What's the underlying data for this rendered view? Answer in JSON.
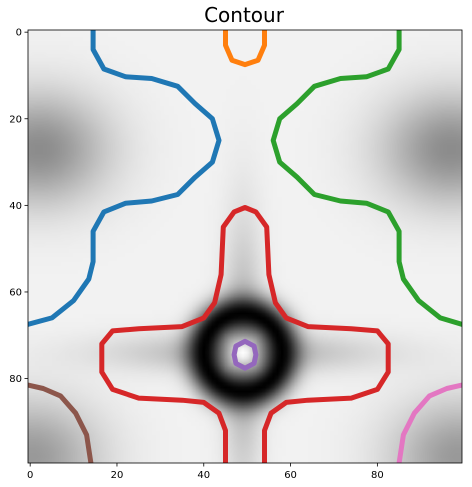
{
  "chart_data": {
    "type": "heatmap",
    "title": "Contour",
    "xlabel": "",
    "ylabel": "",
    "xlim": [
      -0.5,
      99.5
    ],
    "ylim": [
      99.5,
      -0.5
    ],
    "x_ticks": [
      0,
      20,
      40,
      60,
      80
    ],
    "y_ticks": [
      0,
      20,
      40,
      60,
      80
    ],
    "grid": false,
    "colormap": "gray",
    "image_features": {
      "light_background_level": 0.95,
      "dark_ring": {
        "center": [
          49,
          74
        ],
        "radius": 9,
        "level": 0.0
      },
      "bright_center": {
        "center": [
          49,
          74
        ],
        "level": 1.0
      },
      "gray_lobes": [
        {
          "center": [
            2,
            27
          ],
          "level": 0.55
        },
        {
          "center": [
            97,
            27
          ],
          "level": 0.55
        },
        {
          "center": [
            0,
            98
          ],
          "level": 0.6
        },
        {
          "center": [
            99,
            98
          ],
          "level": 0.6
        }
      ]
    },
    "series": [
      {
        "color": "#1f77b4",
        "segments": [
          [
            [
              14.5,
              -0.5
            ],
            [
              14.5,
              4
            ],
            [
              17,
              8.5
            ],
            [
              22,
              10.3
            ],
            [
              28,
              10.7
            ],
            [
              34,
              12.5
            ],
            [
              38,
              16.5
            ],
            [
              42,
              20
            ],
            [
              43.5,
              25
            ],
            [
              42,
              30
            ],
            [
              38,
              33.5
            ],
            [
              34,
              37.5
            ],
            [
              28,
              39
            ],
            [
              22,
              39.5
            ],
            [
              17,
              41.5
            ],
            [
              14.5,
              46
            ],
            [
              14.5,
              53
            ],
            [
              13.5,
              57
            ],
            [
              10,
              62
            ],
            [
              5,
              66
            ],
            [
              -0.5,
              67.5
            ]
          ]
        ]
      },
      {
        "color": "#ff7f0e",
        "segments": [
          [
            [
              45,
              -0.5
            ],
            [
              45,
              3
            ],
            [
              46.5,
              6.5
            ],
            [
              49.5,
              7.5
            ],
            [
              52.5,
              6.5
            ],
            [
              54,
              3
            ],
            [
              54,
              -0.5
            ]
          ]
        ]
      },
      {
        "color": "#2ca02c",
        "segments": [
          [
            [
              85,
              -0.5
            ],
            [
              85,
              4
            ],
            [
              82.5,
              8.5
            ],
            [
              77.5,
              10.3
            ],
            [
              71.5,
              10.7
            ],
            [
              65.5,
              12.5
            ],
            [
              61.5,
              16.5
            ],
            [
              57.5,
              20
            ],
            [
              56,
              25
            ],
            [
              57.5,
              30
            ],
            [
              61.5,
              33.5
            ],
            [
              65.5,
              37.5
            ],
            [
              71.5,
              39
            ],
            [
              77.5,
              39.5
            ],
            [
              82.5,
              41.5
            ],
            [
              85,
              46
            ],
            [
              85,
              53
            ],
            [
              86,
              57
            ],
            [
              89.5,
              62
            ],
            [
              94.5,
              66
            ],
            [
              99.5,
              67.5
            ]
          ]
        ]
      },
      {
        "color": "#d62728",
        "segments": [
          [
            [
              45,
              99.5
            ],
            [
              45,
              92
            ],
            [
              43.5,
              88
            ],
            [
              40,
              85.5
            ],
            [
              35,
              85
            ],
            [
              25,
              84.5
            ],
            [
              19,
              82.5
            ],
            [
              16.5,
              78.5
            ],
            [
              16.5,
              72
            ],
            [
              19,
              69
            ],
            [
              25,
              68.5
            ],
            [
              35,
              68
            ],
            [
              40,
              66
            ],
            [
              42.5,
              62.5
            ],
            [
              44,
              56
            ],
            [
              44.5,
              45
            ],
            [
              47,
              41.5
            ],
            [
              49.5,
              40.5
            ],
            [
              52,
              41.5
            ],
            [
              54.5,
              45
            ],
            [
              55,
              56
            ],
            [
              56.5,
              62.5
            ],
            [
              59,
              66
            ],
            [
              64,
              68
            ],
            [
              74,
              68.5
            ],
            [
              80,
              69
            ],
            [
              82.5,
              72
            ],
            [
              82.5,
              78.5
            ],
            [
              80,
              82.5
            ],
            [
              74,
              84.5
            ],
            [
              64,
              85
            ],
            [
              59,
              85.5
            ],
            [
              55.5,
              88
            ],
            [
              54,
              92
            ],
            [
              54,
              99.5
            ]
          ]
        ]
      },
      {
        "color": "#9467bd",
        "segments": [
          [
            [
              52,
              74.5
            ],
            [
              51.6,
              76.5
            ],
            [
              49.5,
              77.6
            ],
            [
              47.4,
              76.5
            ],
            [
              47,
              74.5
            ],
            [
              47.4,
              72.5
            ],
            [
              49.5,
              71.4
            ],
            [
              51.6,
              72.5
            ],
            [
              52,
              74.5
            ]
          ]
        ]
      },
      {
        "color": "#8c564b",
        "segments": [
          [
            [
              -0.5,
              81.5
            ],
            [
              3,
              82.3
            ],
            [
              7,
              84
            ],
            [
              10.5,
              88
            ],
            [
              13,
              93
            ],
            [
              14,
              99.5
            ]
          ]
        ]
      },
      {
        "color": "#e377c2",
        "segments": [
          [
            [
              99.5,
              81.5
            ],
            [
              96,
              82.3
            ],
            [
              92,
              84
            ],
            [
              88.5,
              88
            ],
            [
              86,
              93
            ],
            [
              85,
              99.5
            ]
          ]
        ]
      }
    ]
  }
}
